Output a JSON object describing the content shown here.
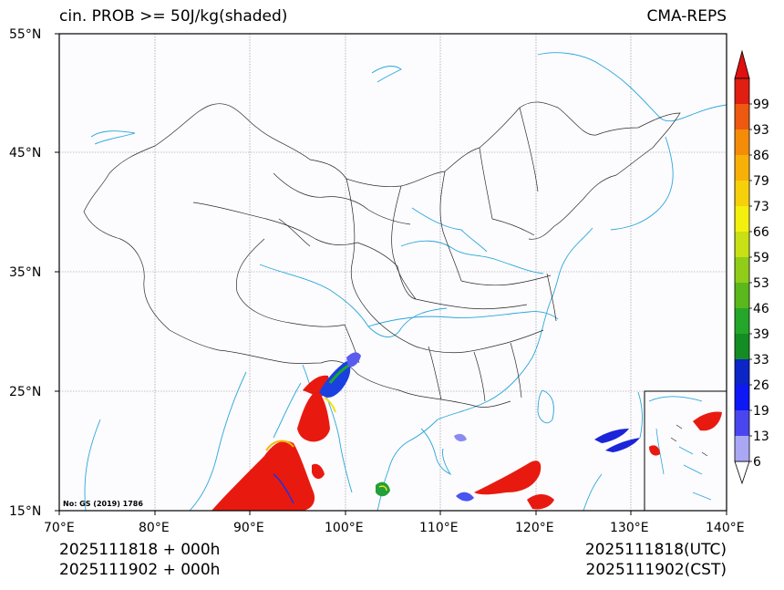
{
  "header": {
    "title": "cin. PROB >= 50J/kg(shaded)",
    "model": "CMA-REPS"
  },
  "map": {
    "lon_range": [
      70,
      140
    ],
    "lat_range": [
      15,
      55
    ],
    "lon_ticks": [
      "70°E",
      "80°E",
      "90°E",
      "100°E",
      "110°E",
      "120°E",
      "130°E",
      "140°E"
    ],
    "lat_ticks": [
      "55°N",
      "45°N",
      "35°N",
      "25°N",
      "15°N"
    ],
    "map_number": "No: GS (2019) 1786"
  },
  "legend": {
    "levels": [
      "6",
      "13",
      "19",
      "26",
      "33",
      "39",
      "46",
      "53",
      "59",
      "66",
      "73",
      "79",
      "86",
      "93",
      "99"
    ],
    "colors": [
      "#aaa8f4",
      "#4a46ef",
      "#0d18f4",
      "#0b25c6",
      "#148c24",
      "#24a62a",
      "#5ab71c",
      "#90cc18",
      "#c8e014",
      "#f4ef0c",
      "#f6d00a",
      "#f7b006",
      "#f48c08",
      "#ee5810",
      "#e01e12"
    ],
    "over_color": "#e01010",
    "under_color": "#ffffff"
  },
  "footer": {
    "init_line1": "2025111818  +  000h",
    "init_line2": "2025111902  +  000h",
    "valid_utc": "2025111818(UTC)",
    "valid_cst": "2025111902(CST)"
  }
}
